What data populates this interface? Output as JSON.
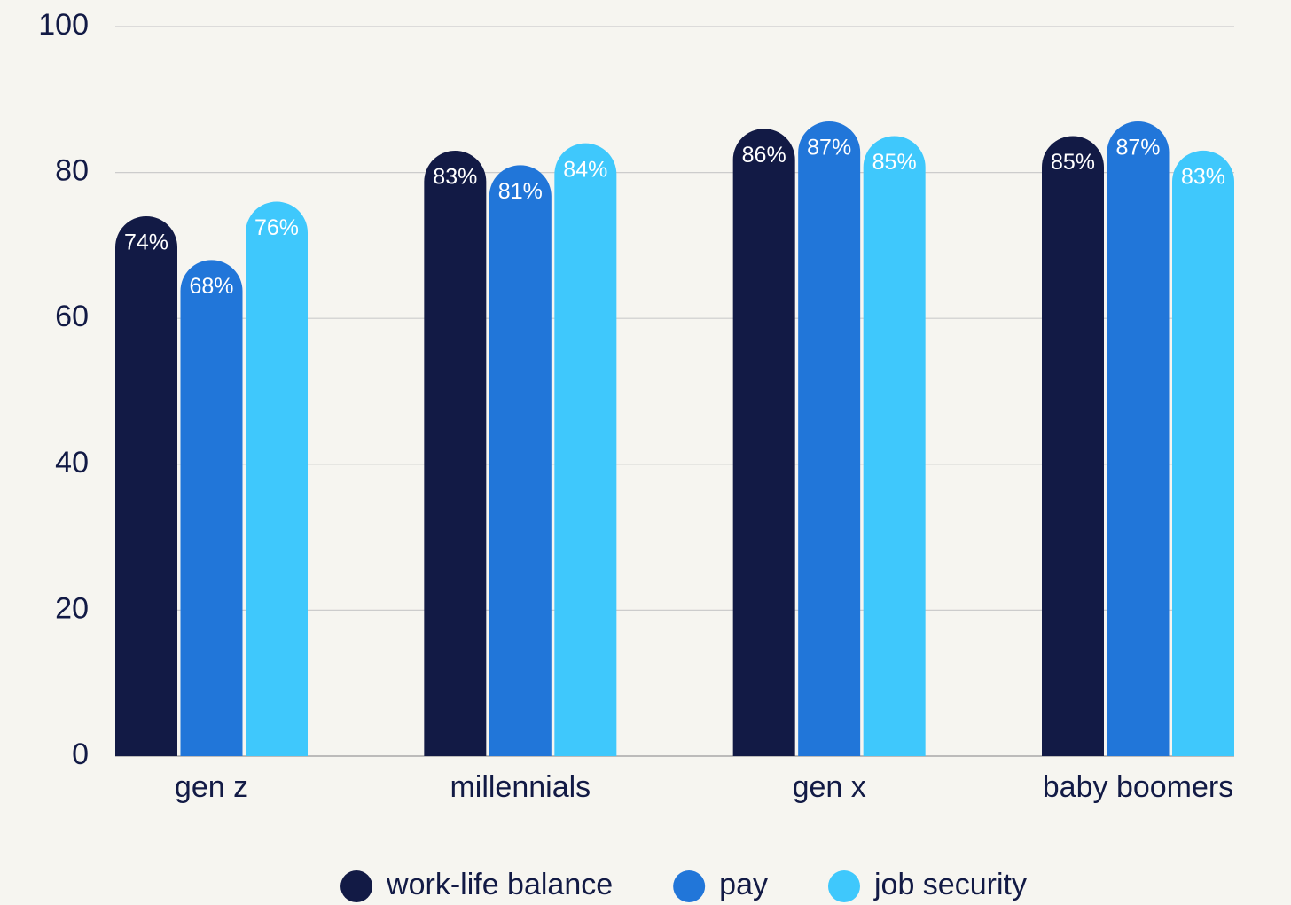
{
  "chart_data": {
    "type": "bar",
    "categories": [
      "gen z",
      "millennials",
      "gen x",
      "baby boomers"
    ],
    "series": [
      {
        "name": "work-life balance",
        "color": "#121a45",
        "values": [
          74,
          83,
          86,
          85
        ],
        "value_labels": [
          "74%",
          "83%",
          "86%",
          "85%"
        ]
      },
      {
        "name": "pay",
        "color": "#2176d9",
        "values": [
          68,
          81,
          87,
          87
        ],
        "value_labels": [
          "68%",
          "81%",
          "87%",
          "87%"
        ]
      },
      {
        "name": "job security",
        "color": "#3fc8fc",
        "values": [
          76,
          84,
          85,
          83
        ],
        "value_labels": [
          "76%",
          "84%",
          "85%",
          "83%"
        ]
      }
    ],
    "ylim": [
      0,
      100
    ],
    "yticks": [
      0,
      20,
      40,
      60,
      80,
      100
    ],
    "grid": true,
    "legend": "bottom"
  }
}
